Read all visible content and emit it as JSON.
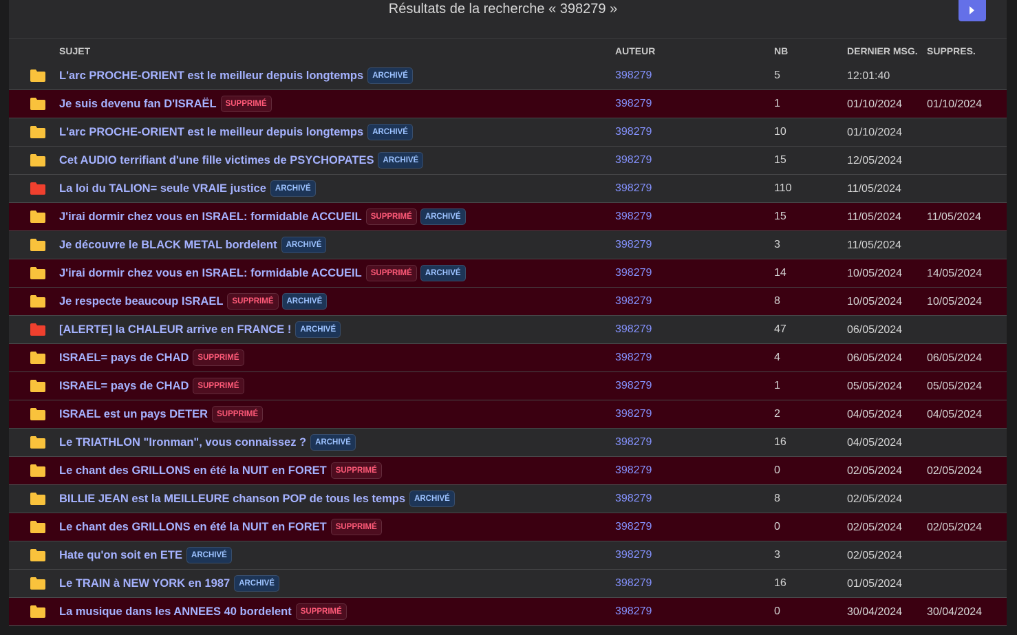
{
  "header": {
    "title": "Résultats de la recherche « 398279 »"
  },
  "table": {
    "columns": [
      "SUJET",
      "AUTEUR",
      "NB",
      "DERNIER MSG.",
      "SUPPRES."
    ],
    "rows": [
      {
        "subject": "L'arc PROCHE-ORIENT est le meilleur depuis longtemps",
        "badges": [
          {
            "label": "ARCHIVÉ",
            "color": "#9cc2ff",
            "background": "#1d3557"
          }
        ],
        "author": "398279",
        "nb": 5,
        "last": "12:01:40",
        "deleted": null,
        "icon_color": "#f9c23c"
      },
      {
        "subject": "Je suis devenu fan D'ISRAËL",
        "badges": [
          {
            "label": "SUPPRIMÉ",
            "color": "#ff5a78",
            "background": "#4d0d1f"
          }
        ],
        "author": "398279",
        "nb": 1,
        "last": "01/10/2024",
        "deleted": "01/10/2024",
        "icon_color": "#f9c23c"
      },
      {
        "subject": "L'arc PROCHE-ORIENT est le meilleur depuis longtemps",
        "badges": [
          {
            "label": "ARCHIVÉ",
            "color": "#9cc2ff",
            "background": "#1d3557"
          }
        ],
        "author": "398279",
        "nb": 10,
        "last": "01/10/2024",
        "deleted": null,
        "icon_color": "#f9c23c"
      },
      {
        "subject": "Cet AUDIO terrifiant d'une fille victimes de PSYCHOPATES",
        "badges": [
          {
            "label": "ARCHIVÉ",
            "color": "#9cc2ff",
            "background": "#1d3557"
          }
        ],
        "author": "398279",
        "nb": 15,
        "last": "12/05/2024",
        "deleted": null,
        "icon_color": "#f9c23c"
      },
      {
        "subject": "La loi du TALION= seule VRAIE justice",
        "badges": [
          {
            "label": "ARCHIVÉ",
            "color": "#9cc2ff",
            "background": "#1d3557"
          }
        ],
        "author": "398279",
        "nb": 110,
        "last": "11/05/2024",
        "deleted": null,
        "icon_color": "#f0402e"
      },
      {
        "subject": "J'irai dormir chez vous en ISRAEL: formidable ACCUEIL",
        "badges": [
          {
            "label": "SUPPRIMÉ",
            "color": "#ff5a78",
            "background": "#4d0d1f"
          },
          {
            "label": "ARCHIVÉ",
            "color": "#9cc2ff",
            "background": "#1d3557"
          }
        ],
        "author": "398279",
        "nb": 15,
        "last": "11/05/2024",
        "deleted": "11/05/2024",
        "icon_color": "#f9c23c"
      },
      {
        "subject": "Je découvre le BLACK METAL bordelent",
        "badges": [
          {
            "label": "ARCHIVÉ",
            "color": "#9cc2ff",
            "background": "#1d3557"
          }
        ],
        "author": "398279",
        "nb": 3,
        "last": "11/05/2024",
        "deleted": null,
        "icon_color": "#f9c23c"
      },
      {
        "subject": "J'irai dormir chez vous en ISRAEL: formidable ACCUEIL",
        "badges": [
          {
            "label": "SUPPRIMÉ",
            "color": "#ff5a78",
            "background": "#4d0d1f"
          },
          {
            "label": "ARCHIVÉ",
            "color": "#9cc2ff",
            "background": "#1d3557"
          }
        ],
        "author": "398279",
        "nb": 14,
        "last": "10/05/2024",
        "deleted": "14/05/2024",
        "icon_color": "#f9c23c"
      },
      {
        "subject": "Je respecte beaucoup ISRAEL",
        "badges": [
          {
            "label": "SUPPRIMÉ",
            "color": "#ff5a78",
            "background": "#4d0d1f"
          },
          {
            "label": "ARCHIVÉ",
            "color": "#9cc2ff",
            "background": "#1d3557"
          }
        ],
        "author": "398279",
        "nb": 8,
        "last": "10/05/2024",
        "deleted": "10/05/2024",
        "icon_color": "#f9c23c"
      },
      {
        "subject": "[ALERTE] la CHALEUR arrive en FRANCE !",
        "badges": [
          {
            "label": "ARCHIVÉ",
            "color": "#9cc2ff",
            "background": "#1d3557"
          }
        ],
        "author": "398279",
        "nb": 47,
        "last": "06/05/2024",
        "deleted": null,
        "icon_color": "#f0402e"
      },
      {
        "subject": "ISRAEL= pays de CHAD",
        "badges": [
          {
            "label": "SUPPRIMÉ",
            "color": "#ff5a78",
            "background": "#4d0d1f"
          }
        ],
        "author": "398279",
        "nb": 4,
        "last": "06/05/2024",
        "deleted": "06/05/2024",
        "icon_color": "#f9c23c"
      },
      {
        "subject": "ISRAEL= pays de CHAD",
        "badges": [
          {
            "label": "SUPPRIMÉ",
            "color": "#ff5a78",
            "background": "#4d0d1f"
          }
        ],
        "author": "398279",
        "nb": 1,
        "last": "05/05/2024",
        "deleted": "05/05/2024",
        "icon_color": "#f9c23c"
      },
      {
        "subject": "ISRAEL est un pays DETER",
        "badges": [
          {
            "label": "SUPPRIMÉ",
            "color": "#ff5a78",
            "background": "#4d0d1f"
          }
        ],
        "author": "398279",
        "nb": 2,
        "last": "04/05/2024",
        "deleted": "04/05/2024",
        "icon_color": "#f9c23c"
      },
      {
        "subject": "Le TRIATHLON \"Ironman\", vous connaissez ?",
        "badges": [
          {
            "label": "ARCHIVÉ",
            "color": "#9cc2ff",
            "background": "#1d3557"
          }
        ],
        "author": "398279",
        "nb": 16,
        "last": "04/05/2024",
        "deleted": null,
        "icon_color": "#f9c23c"
      },
      {
        "subject": "Le chant des GRILLONS en été la NUIT en FORET",
        "badges": [
          {
            "label": "SUPPRIMÉ",
            "color": "#ff5a78",
            "background": "#4d0d1f"
          }
        ],
        "author": "398279",
        "nb": 0,
        "last": "02/05/2024",
        "deleted": "02/05/2024",
        "icon_color": "#f9c23c"
      },
      {
        "subject": "BILLIE JEAN est la MEILLEURE chanson POP de tous les temps",
        "badges": [
          {
            "label": "ARCHIVÉ",
            "color": "#9cc2ff",
            "background": "#1d3557"
          }
        ],
        "author": "398279",
        "nb": 8,
        "last": "02/05/2024",
        "deleted": null,
        "icon_color": "#f9c23c"
      },
      {
        "subject": "Le chant des GRILLONS en été la NUIT en FORET",
        "badges": [
          {
            "label": "SUPPRIMÉ",
            "color": "#ff5a78",
            "background": "#4d0d1f"
          }
        ],
        "author": "398279",
        "nb": 0,
        "last": "02/05/2024",
        "deleted": "02/05/2024",
        "icon_color": "#f9c23c"
      },
      {
        "subject": "Hate qu'on soit en ETE",
        "badges": [
          {
            "label": "ARCHIVÉ",
            "color": "#9cc2ff",
            "background": "#1d3557"
          }
        ],
        "author": "398279",
        "nb": 3,
        "last": "02/05/2024",
        "deleted": null,
        "icon_color": "#f9c23c"
      },
      {
        "subject": "Le TRAIN à NEW YORK en 1987",
        "badges": [
          {
            "label": "ARCHIVÉ",
            "color": "#9cc2ff",
            "background": "#1d3557"
          }
        ],
        "author": "398279",
        "nb": 16,
        "last": "01/05/2024",
        "deleted": null,
        "icon_color": "#f9c23c"
      },
      {
        "subject": "La musique dans les ANNEES 40 bordelent",
        "badges": [
          {
            "label": "SUPPRIMÉ",
            "color": "#ff5a78",
            "background": "#4d0d1f"
          }
        ],
        "author": "398279",
        "nb": 0,
        "last": "30/04/2024",
        "deleted": "30/04/2024",
        "icon_color": "#f9c23c"
      }
    ]
  }
}
